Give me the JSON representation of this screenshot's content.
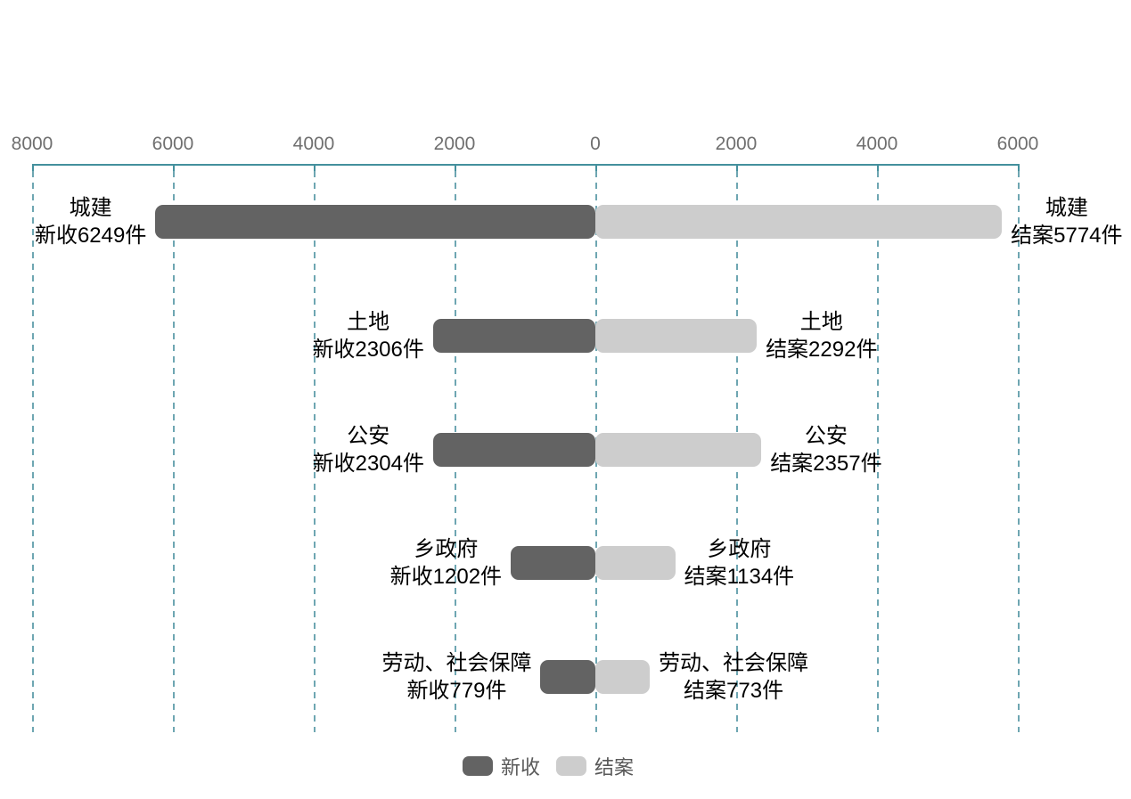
{
  "chart_data": {
    "type": "bar",
    "variant": "diverging-horizontal-tornado",
    "title": "",
    "categories": [
      "城建",
      "土地",
      "公安",
      "乡政府",
      "劳动、社会保障"
    ],
    "series": [
      {
        "name": "新收",
        "side": "left",
        "values": [
          6249,
          2306,
          2304,
          1202,
          779
        ],
        "labels": [
          "新收6249件",
          "新收2306件",
          "新收2304件",
          "新收1202件",
          "新收779件"
        ],
        "color": "#636363"
      },
      {
        "name": "结案",
        "side": "right",
        "values": [
          5774,
          2292,
          2357,
          1134,
          773
        ],
        "labels": [
          "结案5774件",
          "结案2292件",
          "结案2357件",
          "结案1134件",
          "结案773件"
        ],
        "color": "#cdcdcd"
      }
    ],
    "axis": {
      "orientation": "top",
      "left_max": 8000,
      "right_max": 6000,
      "step": 2000,
      "tick_labels": [
        "8000",
        "6000",
        "4000",
        "2000",
        "0",
        "2000",
        "4000",
        "6000"
      ],
      "grid": true
    },
    "legend": {
      "position": "bottom-center",
      "items": [
        {
          "label": "新收",
          "color": "#636363"
        },
        {
          "label": "结案",
          "color": "#cdcdcd"
        }
      ]
    }
  },
  "colors": {
    "axis_line": "#44909d",
    "grid_line": "#6ea6b2",
    "tick_label": "#6f6f6f",
    "category_label": "#000000",
    "legend_label": "#595959",
    "background": "#ffffff"
  }
}
